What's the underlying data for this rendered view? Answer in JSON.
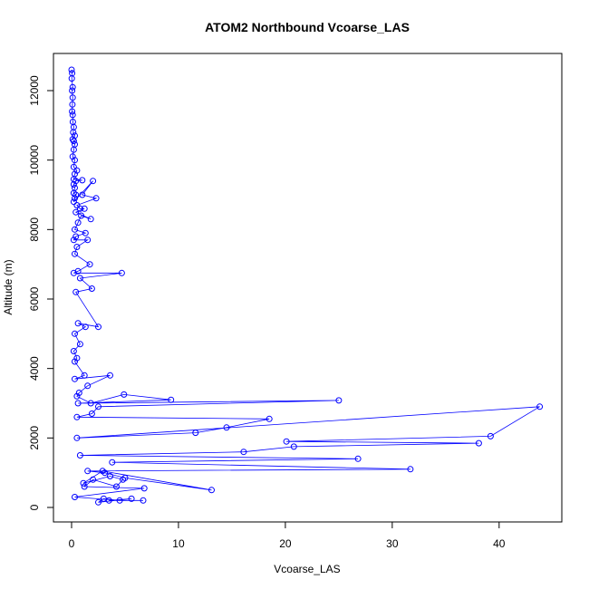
{
  "chart_data": {
    "type": "line",
    "title": "ATOM2 Northbound Vcoarse_LAS",
    "xlabel": "Vcoarse_LAS",
    "ylabel": "Altitude (m)",
    "xlim": [
      0,
      44
    ],
    "ylim": [
      0,
      12600
    ],
    "x_ticks": [
      0,
      10,
      20,
      30,
      40
    ],
    "y_ticks": [
      0,
      2000,
      4000,
      6000,
      8000,
      10000,
      12000
    ],
    "x_tick_labels": [
      "0",
      "10",
      "20",
      "30",
      "40"
    ],
    "y_tick_labels": [
      "0",
      "2000",
      "4000",
      "6000",
      "8000",
      "10000",
      "12000"
    ],
    "series_color": "#0000ff",
    "grid": false,
    "marker": "open-circle",
    "series": [
      {
        "x": [
          0,
          0.05,
          0.02,
          0.1,
          0.05,
          0.1,
          0.08,
          0.05,
          0.1,
          0.12,
          0.2,
          0.15,
          0.3,
          0.1,
          0.2,
          0.3,
          0.2,
          0.1,
          0.3,
          0.2,
          0.5,
          0.3,
          0.2,
          1.0,
          0.4,
          0.2,
          0.3,
          0.2,
          0.4,
          0.3,
          0.2,
          2.0,
          1.0,
          2.3,
          0.5,
          0.8,
          1.2,
          0.4,
          1.8,
          0.9,
          0.6,
          0.3,
          1.3,
          0.4,
          0.2,
          1.5,
          0.5,
          0.3,
          1.7,
          0.6,
          0.2,
          4.7,
          0.8,
          1.9,
          0.4,
          2.5,
          0.6,
          1.3,
          0.3,
          0.8,
          0.2,
          0.5,
          0.3,
          1.2,
          0.3,
          3.6,
          1.5,
          0.7,
          0.5,
          1.8,
          4.9,
          9.3,
          0.6,
          25.0,
          2.5,
          1.9,
          0.5,
          18.5,
          14.5,
          11.6,
          0.5,
          43.8,
          39.2,
          20.1,
          38.1,
          20.8,
          16.1,
          0.8,
          26.8,
          3.8,
          31.7,
          1.5,
          3.1,
          5.0,
          13.1,
          2.9,
          1.1,
          3.6,
          4.8,
          4.2,
          2.0,
          1.2,
          6.8,
          0.3,
          4.5,
          3.0,
          2.5,
          5.6,
          3.5,
          6.7
        ],
        "y": [
          12600,
          12500,
          12350,
          12100,
          12000,
          11800,
          11600,
          11400,
          11300,
          11100,
          10950,
          10800,
          10700,
          10600,
          10550,
          10450,
          10300,
          10100,
          10000,
          9800,
          9700,
          9600,
          9450,
          9420,
          9400,
          9300,
          9200,
          9050,
          9000,
          8900,
          8800,
          9400,
          9000,
          8900,
          8700,
          8600,
          8600,
          8500,
          8300,
          8400,
          8200,
          8000,
          7900,
          7800,
          7700,
          7700,
          7500,
          7300,
          7000,
          6800,
          6750,
          6750,
          6600,
          6300,
          6200,
          5200,
          5300,
          5200,
          5000,
          4700,
          4500,
          4300,
          4200,
          3800,
          3700,
          3800,
          3500,
          3300,
          3200,
          3000,
          3250,
          3100,
          3000,
          3080,
          2900,
          2700,
          2600,
          2550,
          2300,
          2150,
          2000,
          2900,
          2050,
          1900,
          1850,
          1750,
          1600,
          1500,
          1400,
          1300,
          1100,
          1050,
          1000,
          850,
          500,
          1050,
          700,
          900,
          800,
          600,
          800,
          600,
          550,
          300,
          200,
          250,
          150,
          250,
          200,
          200
        ]
      }
    ]
  }
}
